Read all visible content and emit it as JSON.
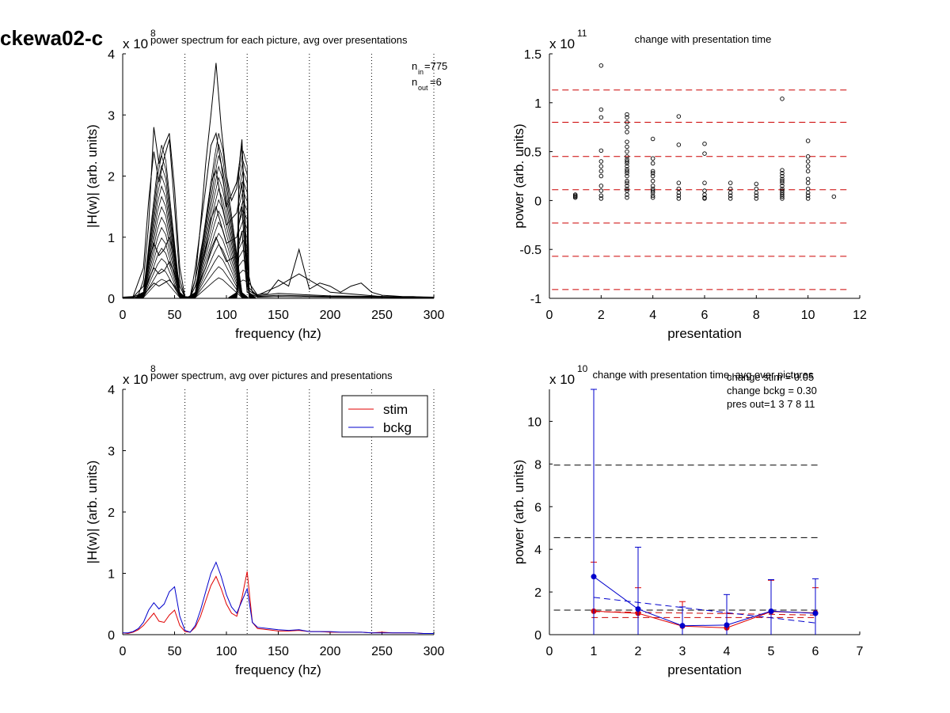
{
  "figure_label": "ckewa02-c",
  "chart_data": [
    {
      "type": "line",
      "panel": "top-left",
      "title": "power spectrum for each picture, avg over presentations",
      "xlabel": "frequency (hz)",
      "ylabel": "|H(w)| (arb. units)",
      "xlim": [
        0,
        300
      ],
      "ylim": [
        0,
        4
      ],
      "y_exponent_label": "x 10",
      "y_exponent": "8",
      "xticks": [
        "0",
        "50",
        "100",
        "150",
        "200",
        "250",
        "300"
      ],
      "yticks": [
        "0",
        "1",
        "2",
        "3",
        "4"
      ],
      "vlines": [
        60,
        120,
        180,
        240,
        300
      ],
      "annotations": [
        "n",
        "in",
        "=775",
        "n",
        "out",
        "=6"
      ],
      "note": "many overlapping traces",
      "series": [
        {
          "x": [
            0,
            5,
            10,
            15,
            20,
            25,
            30,
            35,
            40,
            45,
            50,
            55,
            60,
            65,
            70,
            75,
            80,
            85,
            90,
            95,
            100,
            105,
            110,
            115,
            120,
            125,
            130,
            140,
            150,
            160,
            170,
            180,
            190,
            200,
            210,
            220,
            230,
            240,
            250,
            260,
            270,
            280,
            290,
            300
          ],
          "values": [
            0.02,
            0.02,
            0.03,
            0.05,
            0.3,
            1.2,
            2.8,
            2.2,
            2.5,
            2.7,
            1.8,
            0.5,
            0.03,
            0.02,
            0.3,
            1.2,
            2.2,
            3.0,
            3.85,
            2.8,
            2.0,
            1.6,
            1.8,
            2.6,
            0.5,
            0.1,
            0.06,
            0.08,
            0.3,
            0.2,
            0.8,
            0.15,
            0.25,
            0.2,
            0.1,
            0.2,
            0.25,
            0.1,
            0.05,
            0.04,
            0.03,
            0.03,
            0.02,
            0.02
          ]
        },
        {
          "x": [
            0,
            10,
            20,
            25,
            30,
            35,
            40,
            45,
            50,
            55,
            60,
            65,
            70,
            80,
            85,
            90,
            95,
            100,
            110,
            115,
            120,
            130,
            150,
            170,
            200,
            250,
            300
          ],
          "values": [
            0.02,
            0.03,
            0.5,
            1.6,
            2.4,
            1.9,
            2.3,
            2.6,
            1.5,
            0.3,
            0.02,
            0.02,
            0.5,
            1.8,
            2.5,
            2.7,
            2.2,
            1.5,
            1.9,
            2.5,
            0.3,
            0.05,
            0.2,
            0.4,
            0.1,
            0.03,
            0.02
          ]
        },
        {
          "x": [
            0,
            10,
            20,
            25,
            30,
            35,
            40,
            45,
            50,
            55,
            60,
            65,
            70,
            80,
            85,
            90,
            95,
            100,
            110,
            115,
            120,
            130,
            150,
            200,
            300
          ],
          "values": [
            0.02,
            0.02,
            0.2,
            0.6,
            0.9,
            0.7,
            0.8,
            1.0,
            0.7,
            0.2,
            0.02,
            0.02,
            0.3,
            1.2,
            1.9,
            2.1,
            1.6,
            1.2,
            1.4,
            1.9,
            0.2,
            0.04,
            0.08,
            0.04,
            0.02
          ]
        },
        {
          "x": [
            0,
            10,
            20,
            25,
            30,
            35,
            40,
            45,
            50,
            55,
            60,
            65,
            70,
            80,
            85,
            90,
            95,
            100,
            110,
            115,
            120,
            130,
            150,
            200,
            300
          ],
          "values": [
            0.01,
            0.02,
            0.1,
            0.3,
            0.5,
            0.4,
            0.45,
            0.6,
            0.4,
            0.1,
            0.01,
            0.02,
            0.2,
            0.8,
            1.3,
            1.5,
            1.2,
            0.9,
            1.0,
            1.5,
            0.15,
            0.03,
            0.05,
            0.03,
            0.01
          ]
        },
        {
          "x": [
            0,
            10,
            20,
            25,
            30,
            35,
            40,
            45,
            50,
            55,
            60,
            65,
            70,
            80,
            85,
            90,
            95,
            100,
            110,
            115,
            120,
            130,
            150,
            200,
            300
          ],
          "values": [
            0.01,
            0.01,
            0.05,
            0.15,
            0.25,
            0.2,
            0.25,
            0.3,
            0.2,
            0.05,
            0.01,
            0.01,
            0.1,
            0.5,
            0.8,
            1.0,
            0.8,
            0.6,
            0.7,
            1.1,
            0.1,
            0.02,
            0.03,
            0.02,
            0.01
          ]
        }
      ]
    },
    {
      "type": "scatter",
      "panel": "top-right",
      "title": "change with presentation time",
      "xlabel": "presentation",
      "ylabel": "power (arb. units)",
      "xlim": [
        0,
        12
      ],
      "ylim": [
        -1,
        1.5
      ],
      "y_exponent_label": "x 10",
      "y_exponent": "11",
      "xticks": [
        "0",
        "2",
        "4",
        "6",
        "8",
        "10",
        "12"
      ],
      "yticks": [
        "-1",
        "-0.5",
        "0",
        "0.5",
        "1",
        "1.5"
      ],
      "hlines": [
        1.13,
        0.8,
        0.45,
        0.11,
        -0.23,
        -0.57,
        -0.91
      ],
      "points": {
        "x": [
          1,
          1,
          1,
          1,
          2,
          2,
          2,
          2,
          2,
          2,
          2,
          2,
          2,
          2,
          2,
          2,
          3,
          3,
          3,
          3,
          3,
          3,
          3,
          3,
          3,
          3,
          3,
          3,
          3,
          3,
          3,
          3,
          3,
          3,
          3,
          3,
          3,
          3,
          3,
          3,
          4,
          4,
          4,
          4,
          4,
          4,
          4,
          4,
          4,
          4,
          4,
          4,
          4,
          5,
          5,
          5,
          5,
          5,
          5,
          5,
          6,
          6,
          6,
          6,
          6,
          6,
          6,
          7,
          7,
          7,
          7,
          7,
          8,
          8,
          8,
          8,
          8,
          9,
          9,
          9,
          9,
          9,
          9,
          9,
          9,
          9,
          9,
          9,
          9,
          9,
          9,
          10,
          10,
          10,
          10,
          10,
          10,
          10,
          10,
          10,
          10,
          10,
          11
        ],
        "values": [
          0.03,
          0.04,
          0.05,
          0.06,
          1.38,
          0.93,
          0.85,
          0.51,
          0.4,
          0.35,
          0.3,
          0.25,
          0.15,
          0.1,
          0.05,
          0.02,
          0.88,
          0.85,
          0.8,
          0.75,
          0.7,
          0.6,
          0.55,
          0.5,
          0.45,
          0.42,
          0.4,
          0.38,
          0.35,
          0.32,
          0.3,
          0.28,
          0.25,
          0.2,
          0.18,
          0.15,
          0.12,
          0.1,
          0.06,
          0.03,
          0.63,
          0.43,
          0.38,
          0.3,
          0.28,
          0.25,
          0.2,
          0.15,
          0.12,
          0.1,
          0.08,
          0.05,
          0.03,
          0.86,
          0.57,
          0.18,
          0.12,
          0.08,
          0.05,
          0.02,
          0.58,
          0.48,
          0.18,
          0.1,
          0.06,
          0.03,
          0.02,
          0.18,
          0.12,
          0.08,
          0.05,
          0.02,
          0.17,
          0.12,
          0.08,
          0.05,
          0.02,
          1.04,
          0.31,
          0.28,
          0.25,
          0.22,
          0.2,
          0.18,
          0.15,
          0.12,
          0.1,
          0.08,
          0.06,
          0.04,
          0.02,
          0.61,
          0.45,
          0.4,
          0.35,
          0.3,
          0.22,
          0.18,
          0.12,
          0.08,
          0.05,
          0.02,
          0.04
        ]
      }
    },
    {
      "type": "line",
      "panel": "bottom-left",
      "title": "power spectrum, avg over pictures and presentations",
      "xlabel": "frequency (hz)",
      "ylabel": "|H(w)| (arb. units)",
      "xlim": [
        0,
        300
      ],
      "ylim": [
        0,
        4
      ],
      "y_exponent_label": "x 10",
      "y_exponent": "8",
      "xticks": [
        "0",
        "50",
        "100",
        "150",
        "200",
        "250",
        "300"
      ],
      "yticks": [
        "0",
        "1",
        "2",
        "3",
        "4"
      ],
      "vlines": [
        60,
        120,
        180,
        240,
        300
      ],
      "legend_position": "top-right",
      "series": [
        {
          "name": "stim",
          "color": "#e00000",
          "x": [
            0,
            5,
            10,
            15,
            20,
            25,
            30,
            35,
            40,
            45,
            50,
            55,
            60,
            65,
            70,
            75,
            80,
            85,
            90,
            95,
            100,
            105,
            110,
            115,
            120,
            125,
            130,
            140,
            150,
            160,
            170,
            180,
            190,
            200,
            210,
            220,
            230,
            240,
            250,
            260,
            270,
            280,
            290,
            300
          ],
          "values": [
            0.03,
            0.02,
            0.04,
            0.08,
            0.15,
            0.25,
            0.35,
            0.22,
            0.2,
            0.32,
            0.4,
            0.15,
            0.05,
            0.04,
            0.12,
            0.3,
            0.55,
            0.8,
            0.95,
            0.75,
            0.5,
            0.35,
            0.3,
            0.6,
            1.03,
            0.2,
            0.1,
            0.08,
            0.06,
            0.06,
            0.07,
            0.05,
            0.05,
            0.04,
            0.04,
            0.04,
            0.04,
            0.03,
            0.04,
            0.03,
            0.03,
            0.03,
            0.02,
            0.02
          ]
        },
        {
          "name": "bckg",
          "color": "#0000cc",
          "x": [
            0,
            5,
            10,
            15,
            20,
            25,
            30,
            35,
            40,
            45,
            50,
            55,
            60,
            65,
            70,
            75,
            80,
            85,
            90,
            95,
            100,
            105,
            110,
            115,
            120,
            125,
            130,
            140,
            150,
            160,
            170,
            180,
            190,
            200,
            210,
            220,
            230,
            240,
            250,
            260,
            270,
            280,
            290,
            300
          ],
          "values": [
            0.03,
            0.03,
            0.05,
            0.1,
            0.2,
            0.4,
            0.52,
            0.42,
            0.5,
            0.7,
            0.78,
            0.3,
            0.07,
            0.04,
            0.15,
            0.4,
            0.7,
            1.0,
            1.18,
            0.95,
            0.65,
            0.45,
            0.35,
            0.55,
            0.75,
            0.2,
            0.12,
            0.1,
            0.08,
            0.07,
            0.08,
            0.05,
            0.05,
            0.05,
            0.04,
            0.04,
            0.04,
            0.03,
            0.03,
            0.03,
            0.03,
            0.03,
            0.02,
            0.02
          ]
        }
      ]
    },
    {
      "type": "line",
      "panel": "bottom-right",
      "title": "change with presentation time, avg over pictures",
      "xlabel": "presentation",
      "ylabel": "power (arb. units)",
      "xlim": [
        0,
        7
      ],
      "ylim": [
        0,
        11.5
      ],
      "y_exponent_label": "x 10",
      "y_exponent": "10",
      "xticks": [
        "0",
        "1",
        "2",
        "3",
        "4",
        "5",
        "6",
        "7"
      ],
      "yticks": [
        "0",
        "2",
        "4",
        "6",
        "8",
        "10"
      ],
      "annotations": [
        "change stim = 0.05",
        "change bckg = 0.30",
        "pres out=1 3 7 8 11"
      ],
      "hlines_black": [
        7.95,
        4.55,
        1.15
      ],
      "hlines_red": [
        0.8
      ],
      "series": [
        {
          "name": "stim",
          "color": "#e00000",
          "x": [
            1,
            2,
            3,
            4,
            5,
            6
          ],
          "values": [
            1.1,
            1.0,
            0.4,
            0.32,
            1.08,
            1.02
          ],
          "err_low": [
            0.0,
            0.0,
            0.0,
            0.0,
            0.0,
            0.0
          ],
          "err_high": [
            3.4,
            2.2,
            1.55,
            1.0,
            2.55,
            2.2
          ]
        },
        {
          "name": "bckg",
          "color": "#0000cc",
          "x": [
            1,
            2,
            3,
            4,
            5,
            6
          ],
          "values": [
            2.72,
            1.2,
            0.42,
            0.45,
            1.1,
            1.0
          ],
          "err_low": [
            0.0,
            0.0,
            0.0,
            0.0,
            0.0,
            0.0
          ],
          "err_high": [
            11.5,
            4.1,
            1.3,
            1.88,
            2.58,
            2.62
          ]
        }
      ],
      "fit_red": {
        "x": [
          1,
          6
        ],
        "values": [
          1.08,
          0.92
        ]
      },
      "fit_blue": {
        "x": [
          1,
          6
        ],
        "values": [
          1.75,
          0.55
        ]
      }
    }
  ]
}
